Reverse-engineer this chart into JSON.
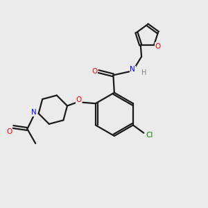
{
  "background_color": "#ebebeb",
  "bond_color": "#1a1a1a",
  "nitrogen_color": "#0000ff",
  "oxygen_color": "#ff0000",
  "chlorine_color": "#008000",
  "hydrogen_color": "#808080",
  "line_width": 1.6,
  "dbo": 0.055,
  "xlim": [
    0,
    10
  ],
  "ylim": [
    0,
    10
  ]
}
